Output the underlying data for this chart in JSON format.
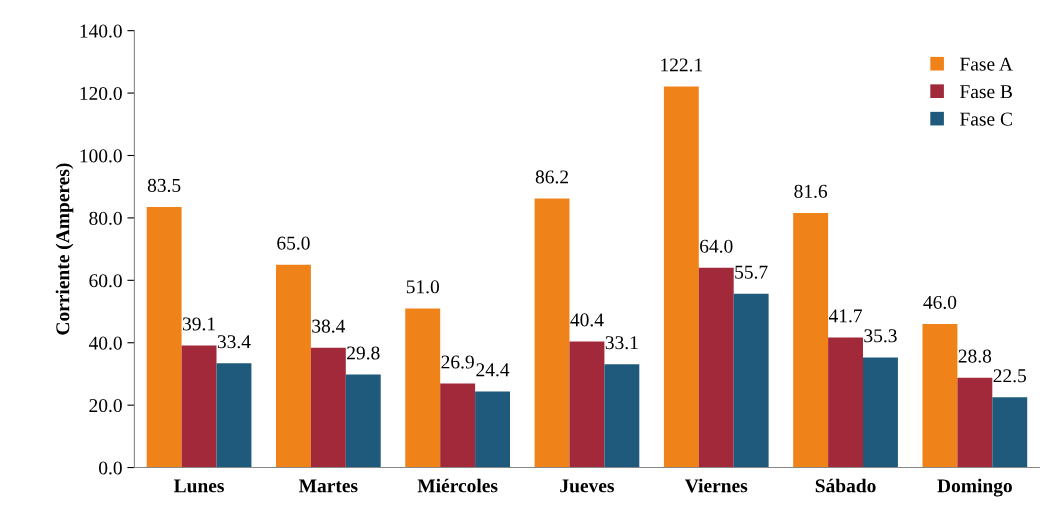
{
  "chart_data": {
    "type": "bar",
    "ylabel": "Corriente (Amperes)",
    "categories": [
      "Lunes",
      "Martes",
      "Miércoles",
      "Jueves",
      "Viernes",
      "Sábado",
      "Domingo"
    ],
    "series": [
      {
        "name": "Fase A",
        "color": "#f0821a",
        "values": [
          83.5,
          65.0,
          51.0,
          86.2,
          122.1,
          81.6,
          46.0
        ],
        "value_labels": [
          "83.5",
          "65.0",
          "51.0",
          "86.2",
          "122.1",
          "81.6",
          "46.0"
        ]
      },
      {
        "name": "Fase B",
        "color": "#a2293a",
        "values": [
          39.1,
          38.4,
          26.9,
          40.4,
          64.0,
          41.7,
          28.8
        ],
        "value_labels": [
          "39.1",
          "38.4",
          "26.9",
          "40.4",
          "64.0",
          "41.7",
          "28.8"
        ]
      },
      {
        "name": "Fase C",
        "color": "#1f5a7c",
        "values": [
          33.4,
          29.8,
          24.4,
          33.1,
          55.7,
          35.3,
          22.5
        ],
        "value_labels": [
          "33.4",
          "29.8",
          "24.4",
          "33.1",
          "55.7",
          "35.3",
          "22.5"
        ]
      }
    ],
    "ylim": [
      0,
      140
    ],
    "yticks": [
      {
        "value": 0,
        "label": "0.0"
      },
      {
        "value": 20,
        "label": "20.0"
      },
      {
        "value": 40,
        "label": "40.0"
      },
      {
        "value": 60,
        "label": "60.0"
      },
      {
        "value": 80,
        "label": "80.0"
      },
      {
        "value": 100,
        "label": "100.0"
      },
      {
        "value": 120,
        "label": "120.0"
      },
      {
        "value": 140,
        "label": "140.0"
      }
    ],
    "grid": false,
    "legend": "top right"
  }
}
